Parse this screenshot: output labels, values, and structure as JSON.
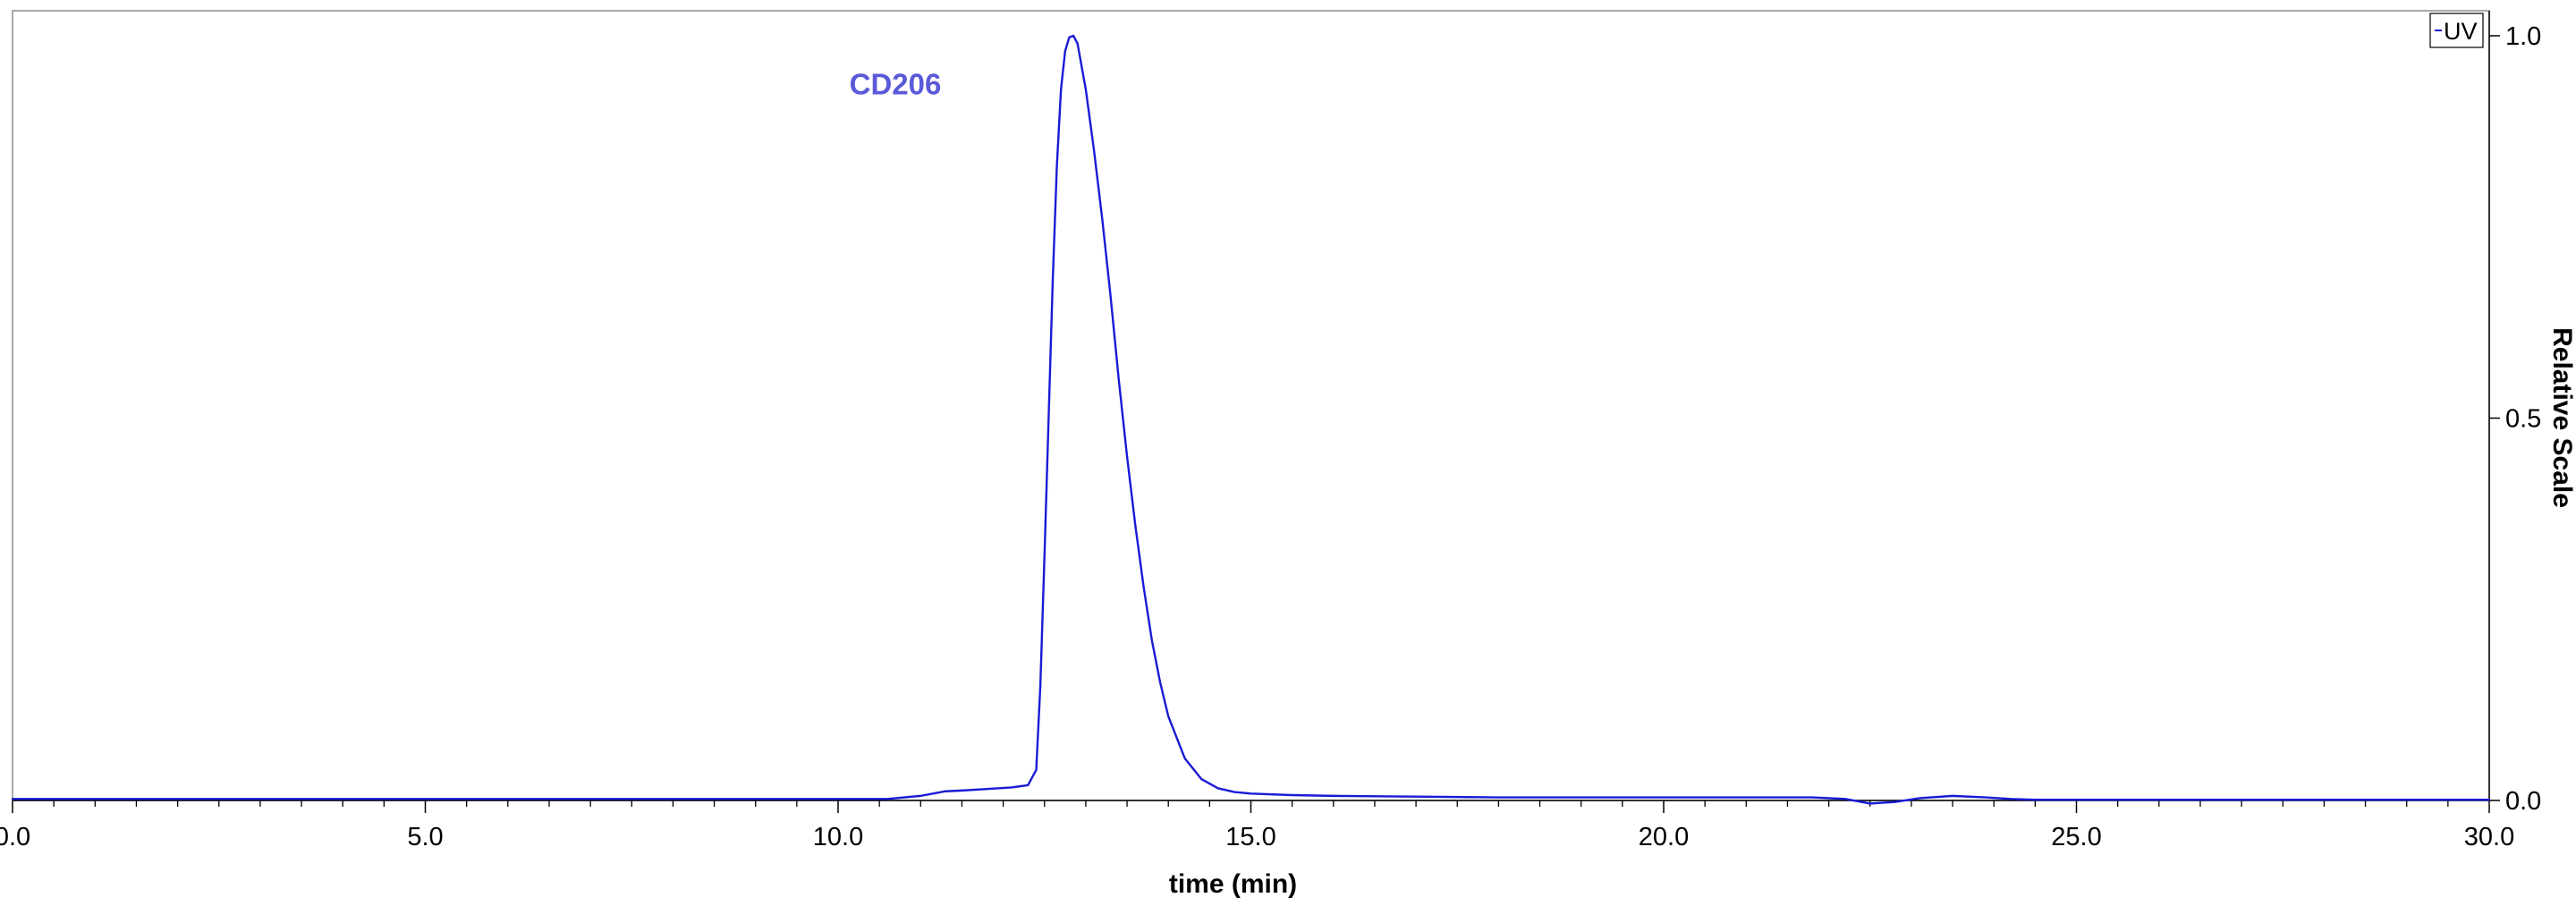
{
  "chart_data": {
    "type": "line",
    "x_axis": {
      "title": "time (min)",
      "range": [
        0,
        30
      ],
      "major_ticks": [
        0,
        5,
        10,
        15,
        20,
        25,
        30
      ],
      "tick_labels": [
        "0.0",
        "5.0",
        "10.0",
        "15.0",
        "20.0",
        "25.0",
        "30.0"
      ],
      "minor_tick_step": 0.5
    },
    "y_axis": {
      "title": "Relative Scale",
      "position": "right",
      "range": [
        0,
        1.0
      ],
      "major_ticks": [
        0,
        0.5,
        1.0
      ],
      "tick_labels": [
        "0.0",
        "0.5",
        "1.0"
      ]
    },
    "grid": false,
    "legend": {
      "placement": "top-right",
      "entries": [
        "UV"
      ]
    },
    "annotations": [
      {
        "text": "CD206",
        "x": 10.7,
        "y": 0.935
      }
    ],
    "series": [
      {
        "name": "UV",
        "color": "#1a1ad6",
        "x": [
          0,
          1,
          2,
          3,
          4,
          5,
          6,
          7,
          8,
          9,
          10,
          10.6,
          11.0,
          11.3,
          11.5,
          11.8,
          12.1,
          12.3,
          12.4,
          12.45,
          12.5,
          12.55,
          12.6,
          12.65,
          12.7,
          12.75,
          12.8,
          12.85,
          12.9,
          12.95,
          13.0,
          13.1,
          13.2,
          13.3,
          13.4,
          13.5,
          13.6,
          13.7,
          13.8,
          13.9,
          14.0,
          14.2,
          14.4,
          14.6,
          14.8,
          15.0,
          15.5,
          16.0,
          17.0,
          18.0,
          19.0,
          20.0,
          21.0,
          21.8,
          22.2,
          22.5,
          22.8,
          23.1,
          23.5,
          23.9,
          24.2,
          24.5,
          25.0,
          26.0,
          27.0,
          28.0,
          29.0,
          30.0
        ],
        "y": [
          0.002,
          0.002,
          0.002,
          0.002,
          0.002,
          0.002,
          0.002,
          0.002,
          0.002,
          0.002,
          0.002,
          0.002,
          0.006,
          0.012,
          0.013,
          0.015,
          0.017,
          0.02,
          0.04,
          0.15,
          0.32,
          0.5,
          0.68,
          0.83,
          0.93,
          0.98,
          0.998,
          1.0,
          0.99,
          0.96,
          0.93,
          0.85,
          0.76,
          0.66,
          0.55,
          0.45,
          0.36,
          0.28,
          0.21,
          0.155,
          0.11,
          0.055,
          0.028,
          0.016,
          0.011,
          0.009,
          0.007,
          0.006,
          0.005,
          0.004,
          0.004,
          0.004,
          0.004,
          0.004,
          0.002,
          -0.004,
          -0.002,
          0.003,
          0.006,
          0.004,
          0.002,
          0.001,
          0.001,
          0.001,
          0.001,
          0.001,
          0.001,
          0.001
        ]
      }
    ]
  }
}
